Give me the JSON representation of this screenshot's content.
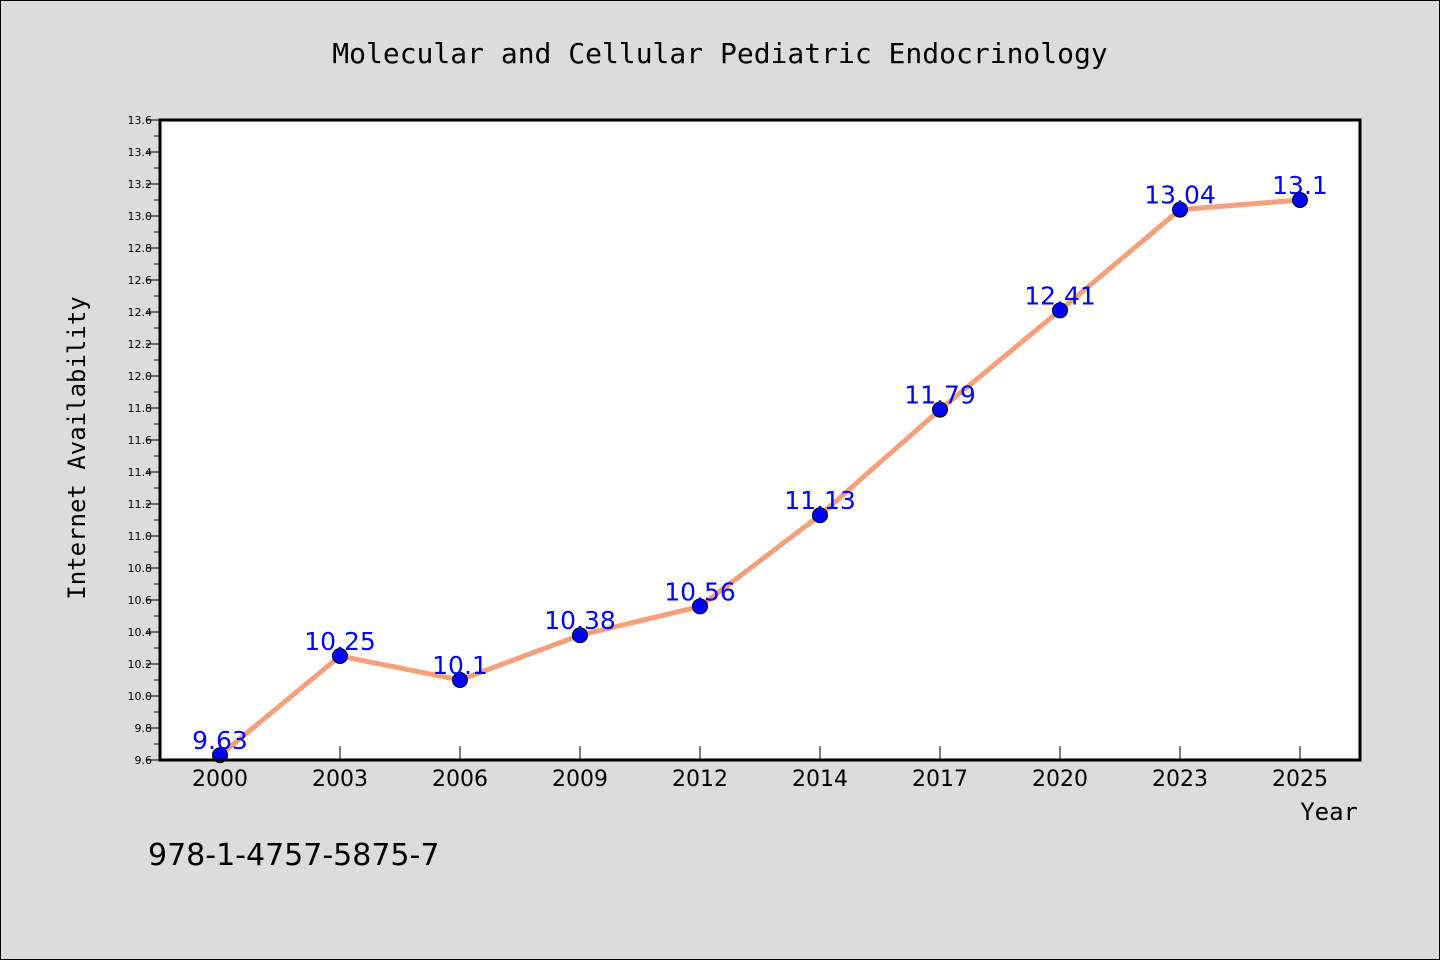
{
  "chart_data": {
    "type": "line",
    "title": "Molecular and Cellular Pediatric Endocrinology",
    "xlabel": "Year",
    "ylabel": "Internet Availability",
    "categories": [
      "2000",
      "2003",
      "2006",
      "2009",
      "2012",
      "2014",
      "2017",
      "2020",
      "2023",
      "2025"
    ],
    "values": [
      9.63,
      10.25,
      10.1,
      10.38,
      10.56,
      11.13,
      11.79,
      12.41,
      13.04,
      13.1
    ],
    "data_labels": [
      "9.63",
      "10.25",
      "10.1",
      "10.38",
      "10.56",
      "11.13",
      "11.79",
      "12.41",
      "13.04",
      "13.1"
    ],
    "ylim": [
      9.6,
      13.6
    ],
    "yticks": [
      "9.6",
      "9.8",
      "10.0",
      "10.2",
      "10.4",
      "10.6",
      "10.8",
      "11.0",
      "11.2",
      "11.4",
      "11.6",
      "11.8",
      "12.0",
      "12.2",
      "12.4",
      "12.6",
      "12.8",
      "13.0",
      "13.2",
      "13.4",
      "13.6"
    ],
    "grid": false,
    "line_color": "#f4a07c",
    "marker_color": "#0000ff",
    "label_color": "#0000ff"
  },
  "footer": {
    "isbn": "978-1-4757-5875-7"
  }
}
